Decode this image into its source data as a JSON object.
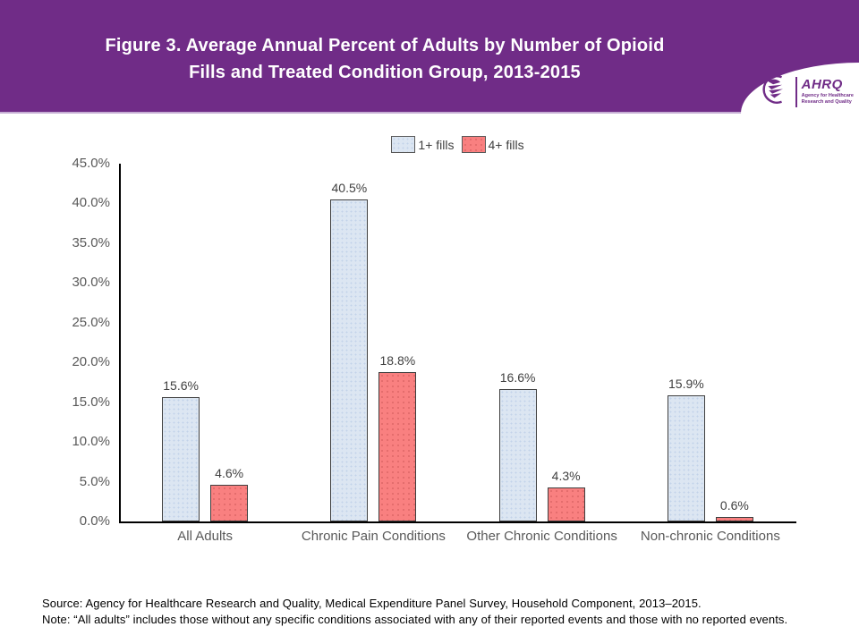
{
  "header": {
    "title_line1": "Figure 3. Average Annual Percent of Adults by Number of Opioid",
    "title_line2": "Fills and Treated Condition Group, 2013-2015",
    "background_color": "#702C87",
    "logo": {
      "acronym": "AHRQ",
      "tagline_line1": "Agency for Healthcare",
      "tagline_line2": "Research and Quality"
    }
  },
  "chart_data": {
    "type": "bar",
    "title": "Figure 3. Average Annual Percent of Adults by Number of Opioid Fills and Treated Condition Group, 2013-2015",
    "categories": [
      "All Adults",
      "Chronic Pain Conditions",
      "Other Chronic Conditions",
      "Non-chronic Conditions"
    ],
    "series": [
      {
        "name": "1+ fills",
        "color": "#DCE6F2",
        "border_color": "#3F3F3F",
        "values": [
          15.6,
          40.5,
          16.6,
          15.9
        ],
        "labels": [
          "15.6%",
          "40.5%",
          "16.6%",
          "15.9%"
        ]
      },
      {
        "name": "4+ fills",
        "color": "#F98080",
        "border_color": "#3F3F3F",
        "values": [
          4.6,
          18.8,
          4.3,
          0.6
        ],
        "labels": [
          "4.6%",
          "18.8%",
          "4.3%",
          "0.6%"
        ]
      }
    ],
    "xlabel": "",
    "ylabel": "",
    "ylim": [
      0,
      45
    ],
    "grid": false,
    "legend_position": "top",
    "yticks": [
      {
        "value": 0,
        "label": "0.0%"
      },
      {
        "value": 5,
        "label": "5.0%"
      },
      {
        "value": 10,
        "label": "10.0%"
      },
      {
        "value": 15,
        "label": "15.0%"
      },
      {
        "value": 20,
        "label": "20.0%"
      },
      {
        "value": 25,
        "label": "25.0%"
      },
      {
        "value": 30,
        "label": "30.0%"
      },
      {
        "value": 35,
        "label": "35.0%"
      },
      {
        "value": 40,
        "label": "40.0%"
      },
      {
        "value": 45,
        "label": "45.0%"
      }
    ]
  },
  "footer": {
    "source": "Source: Agency for Healthcare Research and Quality, Medical Expenditure Panel Survey, Household Component, 2013–2015.",
    "note": "Note: “All adults” includes those without any specific conditions associated with any of their reported events and those with no reported events."
  }
}
